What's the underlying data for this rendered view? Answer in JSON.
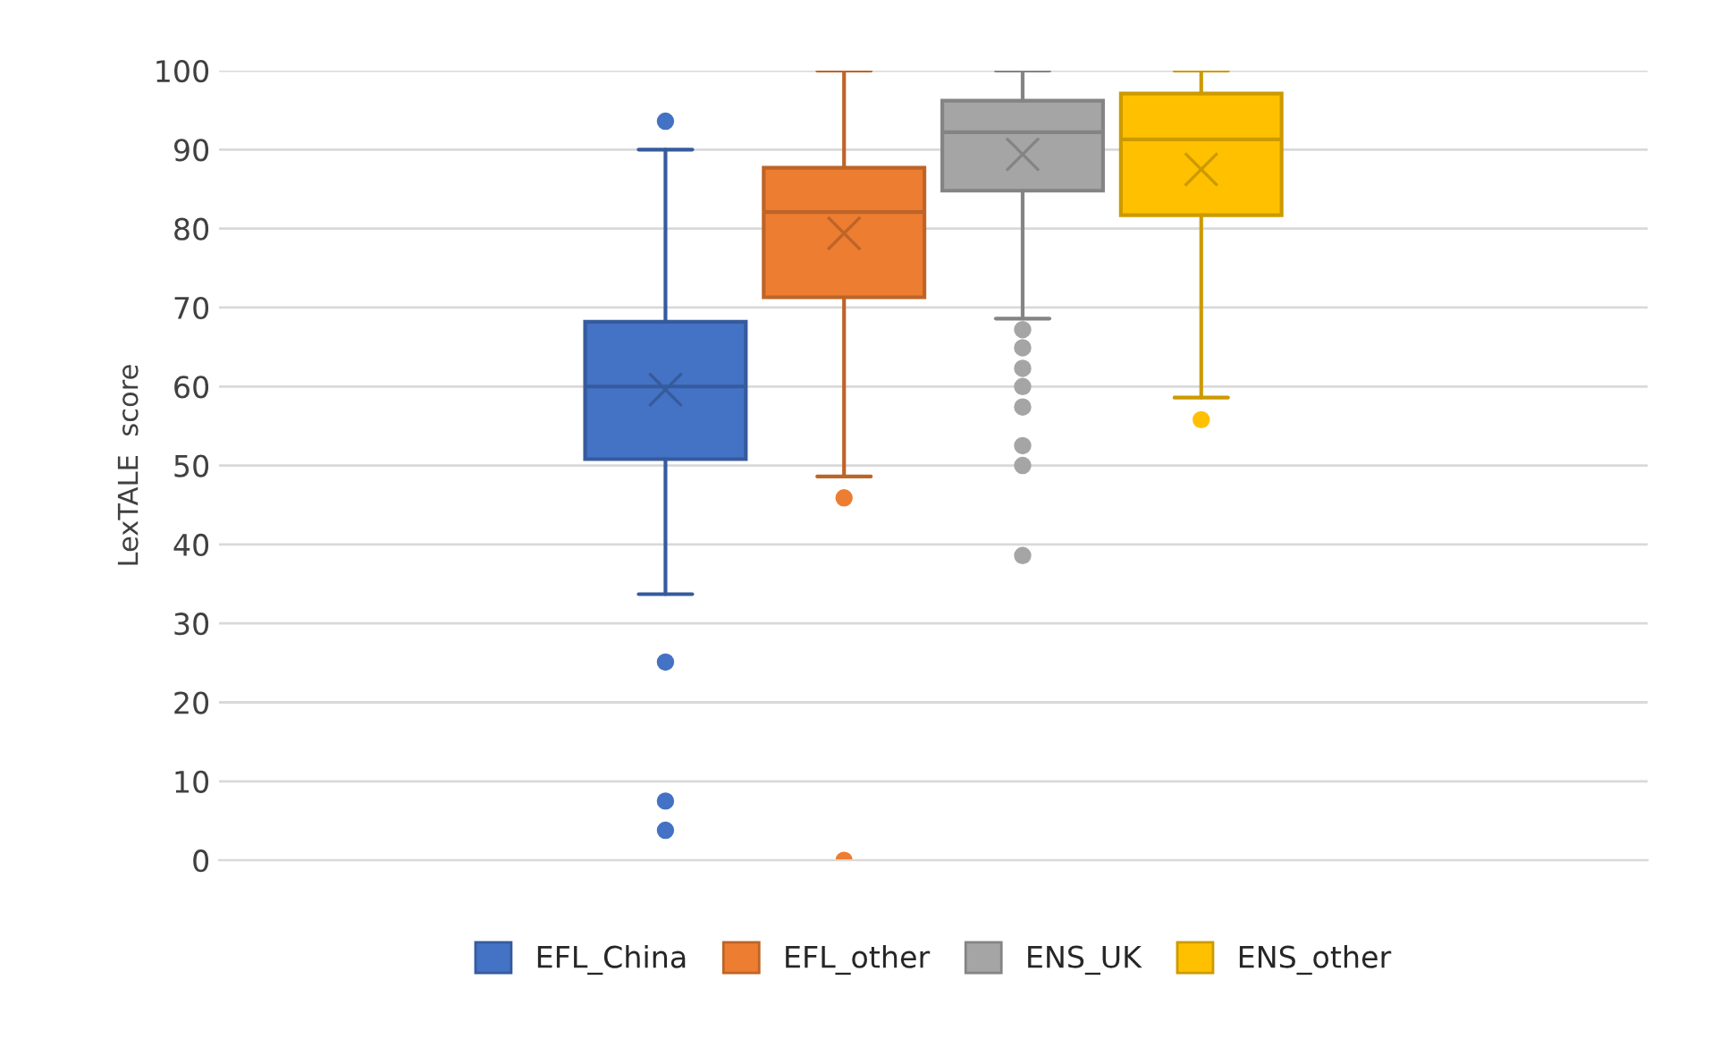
{
  "chart_data": {
    "type": "box",
    "ylabel": "LexTALE  score",
    "categories": [
      null
    ],
    "ylim": [
      0,
      100
    ],
    "yticks": [
      0,
      10,
      20,
      30,
      40,
      50,
      60,
      70,
      80,
      90,
      100
    ],
    "grid": "y",
    "legend": "bottom",
    "series": [
      {
        "name": "EFL_China",
        "color": "#4472c4",
        "boxes": [
          {
            "low": 33.7,
            "q1": 50.8,
            "median": 60,
            "q3": 68.2,
            "high": 90,
            "mean": 59.6,
            "outliers": [
              93.6,
              25.1,
              7.5,
              3.8
            ]
          }
        ]
      },
      {
        "name": "EFL_other",
        "color": "#ed7d31",
        "boxes": [
          {
            "low": 48.6,
            "q1": 71.3,
            "median": 82.1,
            "q3": 87.7,
            "high": 100,
            "mean": 79.4,
            "outliers": [
              45.9,
              0
            ]
          }
        ]
      },
      {
        "name": "ENS_UK",
        "color": "#a5a5a5",
        "boxes": [
          {
            "low": 68.6,
            "q1": 84.8,
            "median": 92.2,
            "q3": 96.2,
            "high": 100,
            "mean": 89.4,
            "outliers": [
              67.2,
              64.9,
              62.3,
              60,
              57.4,
              52.5,
              50,
              38.6
            ]
          }
        ]
      },
      {
        "name": "ENS_other",
        "color": "#ffc000",
        "boxes": [
          {
            "low": 58.6,
            "q1": 81.7,
            "median": 91.3,
            "q3": 97.1,
            "high": 100,
            "mean": 87.5,
            "outliers": [
              55.8
            ]
          }
        ]
      }
    ]
  }
}
